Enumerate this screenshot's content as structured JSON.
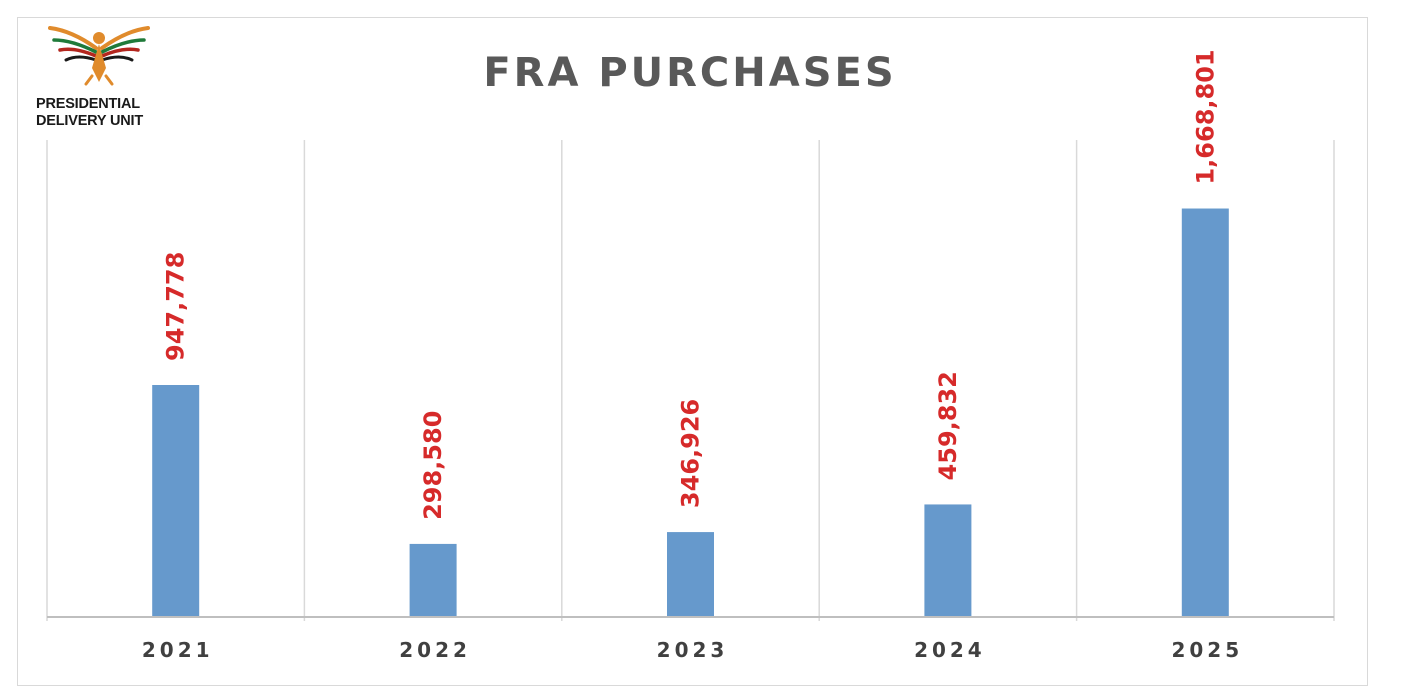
{
  "logo": {
    "line1": "PRESIDENTIAL",
    "line2": "DELIVERY UNIT",
    "colors": [
      "#e08b2c",
      "#1f7a3a",
      "#b3261e",
      "#1a1a1a"
    ]
  },
  "chart_data": {
    "type": "bar",
    "title": "FRA PURCHASES",
    "categories": [
      "2021",
      "2022",
      "2023",
      "2024",
      "2025"
    ],
    "values": [
      947778,
      298580,
      346926,
      459832,
      1668801
    ],
    "value_labels": [
      "947,778",
      "298,580",
      "346,926",
      "459,832",
      "1,668,801"
    ],
    "xlabel": "",
    "ylabel": "",
    "ylim": [
      0,
      1900000
    ],
    "grid": "vertical category separators",
    "legend": "none",
    "bar_color": "#6699cc",
    "label_color": "#d62a2a"
  }
}
